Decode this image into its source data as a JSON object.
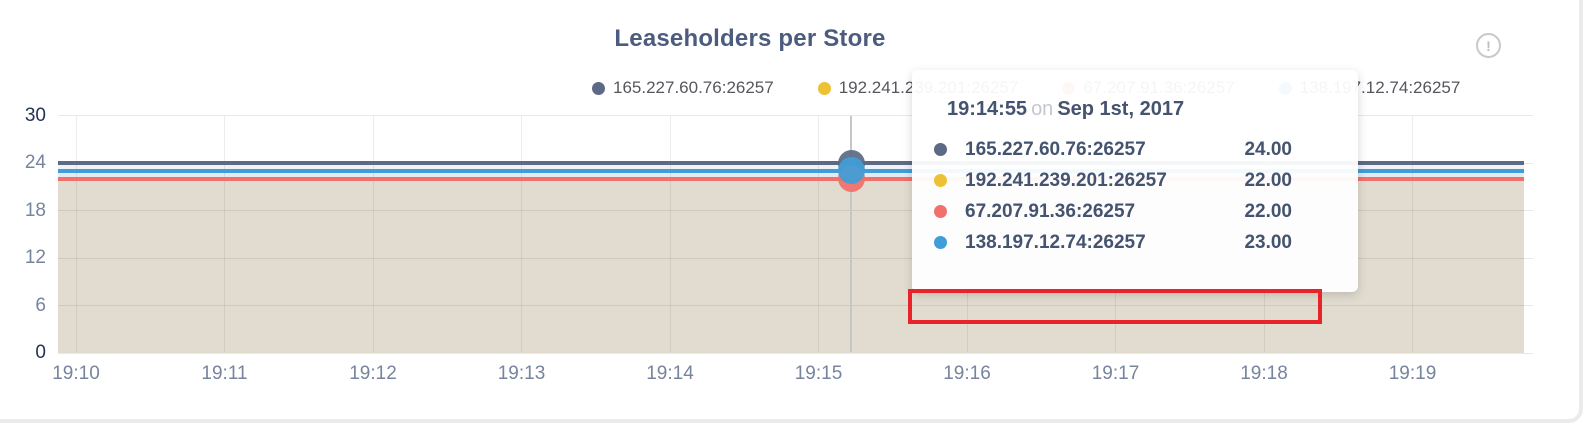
{
  "header": {
    "title": "Leaseholders per Store"
  },
  "icons": {
    "info_glyph": "!"
  },
  "legend": {
    "items": [
      {
        "label": "165.227.60.76:26257",
        "color": "#5d6a85"
      },
      {
        "label": "192.241.239.201:26257",
        "color": "#eec033"
      },
      {
        "label": "67.207.91.36:26257",
        "color": "#f2706b"
      },
      {
        "label": "138.197.12.74:26257",
        "color": "#3f9ed8"
      }
    ]
  },
  "tooltip": {
    "time": "19:14:55",
    "conjunction": "on",
    "date": "Sep 1st, 2017",
    "rows": [
      {
        "label": "165.227.60.76:26257",
        "value": "24.00",
        "color": "#5d6a85",
        "highlighted": false
      },
      {
        "label": "192.241.239.201:26257",
        "value": "22.00",
        "color": "#eec033",
        "highlighted": false
      },
      {
        "label": "67.207.91.36:26257",
        "value": "22.00",
        "color": "#f2706b",
        "highlighted": false
      },
      {
        "label": "138.197.12.74:26257",
        "value": "23.00",
        "color": "#3f9ed8",
        "highlighted": true
      }
    ],
    "highlight_color": "#e8242a"
  },
  "chart_data": {
    "type": "line",
    "title": "Leaseholders per Store",
    "xlabel": "",
    "ylabel": "",
    "x_ticks": [
      "19:10",
      "19:11",
      "19:12",
      "19:13",
      "19:14",
      "19:15",
      "19:16",
      "19:17",
      "19:18",
      "19:19"
    ],
    "y_ticks": [
      0,
      6,
      12,
      18,
      24,
      30
    ],
    "ylim": [
      0,
      30
    ],
    "grid": true,
    "legend_position": "top",
    "area_fill": true,
    "series": [
      {
        "name": "165.227.60.76:26257",
        "color": "#5d6a85",
        "values": [
          24,
          24,
          24,
          24,
          24,
          24,
          24,
          24,
          24,
          24
        ]
      },
      {
        "name": "192.241.239.201:26257",
        "color": "#eec033",
        "values": [
          22,
          22,
          22,
          22,
          22,
          22,
          22,
          22,
          22,
          22
        ]
      },
      {
        "name": "67.207.91.36:26257",
        "color": "#f2706b",
        "values": [
          22,
          22,
          22,
          22,
          22,
          22,
          22,
          22,
          22,
          22
        ]
      },
      {
        "name": "138.197.12.74:26257",
        "color": "#3f9ed8",
        "values": [
          23,
          23,
          23,
          23,
          23,
          23,
          23,
          23,
          23,
          23
        ]
      }
    ],
    "hover_point": {
      "time": "19:14:55",
      "date": "Sep 1st, 2017",
      "x_fraction": 0.541,
      "values": [
        24,
        22,
        22,
        23
      ]
    }
  }
}
